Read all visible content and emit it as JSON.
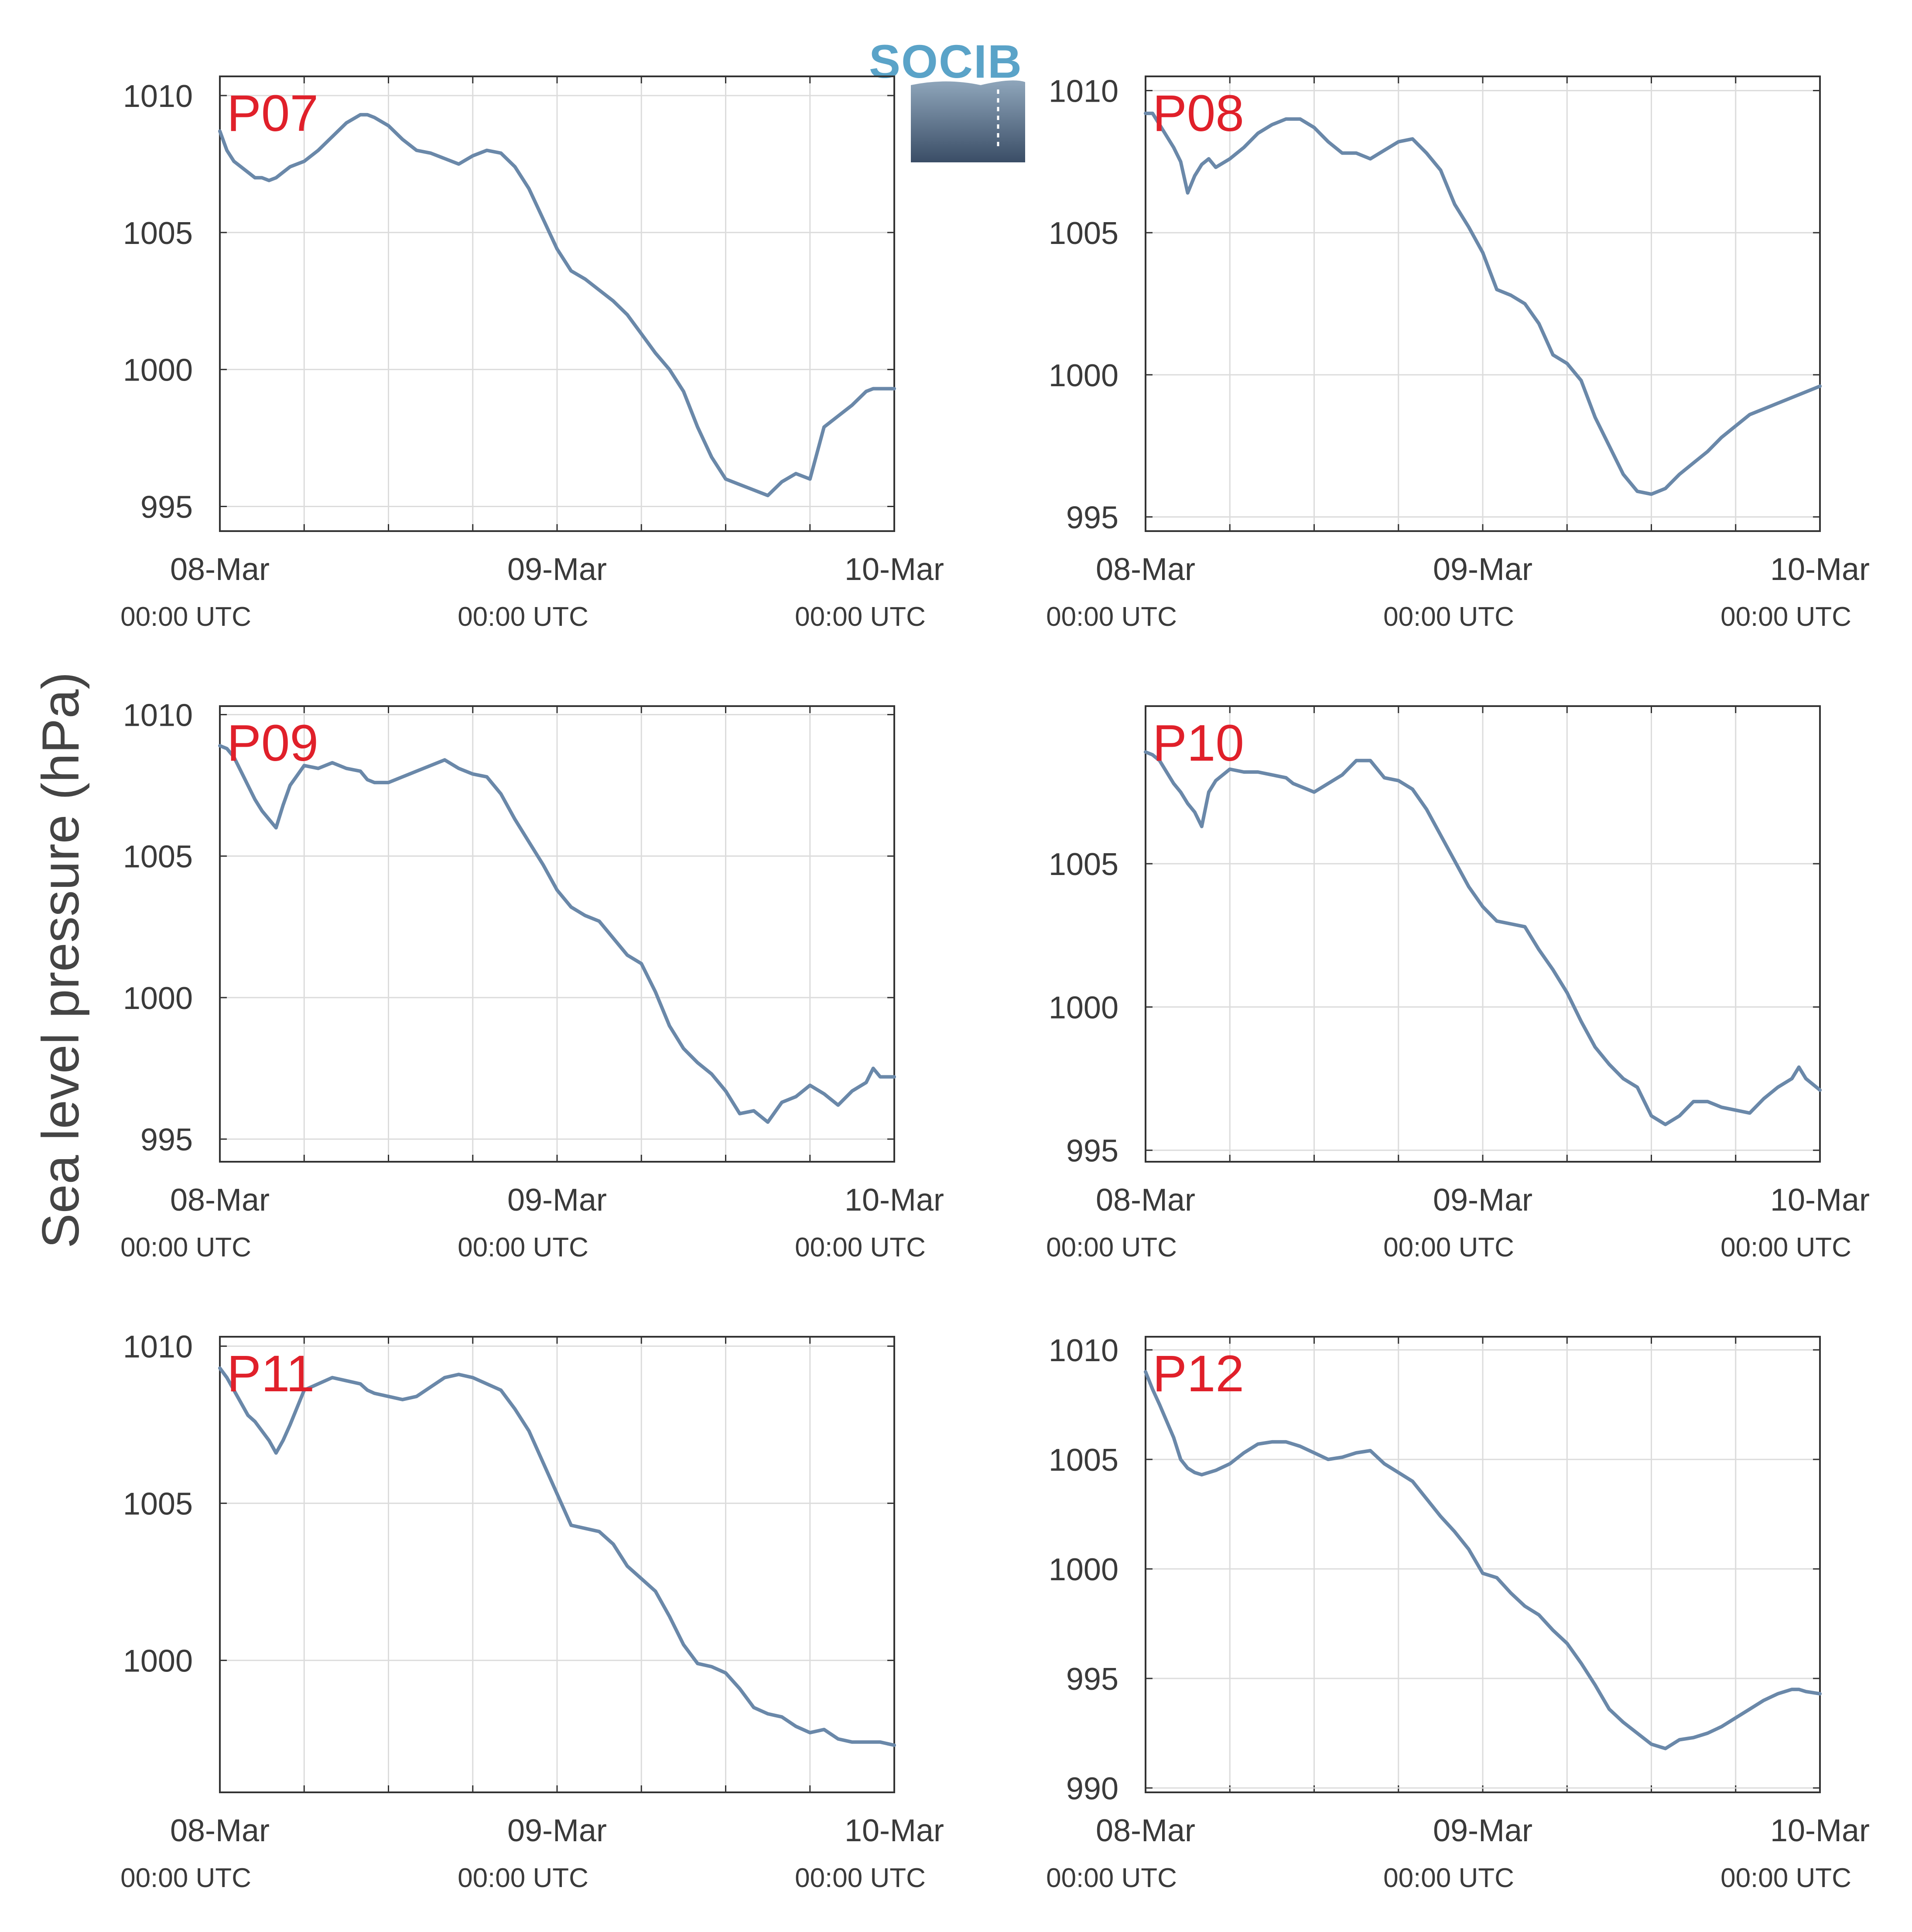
{
  "figure": {
    "ylabel": "Sea level pressure (hPa)",
    "logo_text": "SOCIB",
    "x_tick_labels": [
      "08-Mar",
      "09-Mar",
      "10-Mar"
    ],
    "x_tick_sublabels": [
      "00:00 UTC",
      "00:00 UTC",
      "00:00 UTC"
    ],
    "colors": {
      "line": "#6a88a9",
      "panel_label": "#e0202a",
      "grid": "#dcdcdc",
      "frame": "#333333",
      "logo_top": "#5aa3c8",
      "logo_bottom": "#3a4d66"
    }
  },
  "chart_data": [
    {
      "type": "line",
      "title": "P07",
      "ylim": [
        994.1,
        1010.7
      ],
      "yticks": [
        995,
        1000,
        1005,
        1010
      ],
      "x_unit": "hours since 08-Mar 00:00 UTC",
      "xlim": [
        0,
        48
      ],
      "grid": true,
      "series": [
        {
          "x": [
            0,
            0.5,
            1,
            2,
            2.5,
            3,
            3.5,
            4,
            4.5,
            5,
            6,
            7,
            8,
            9,
            10,
            10.5,
            11,
            12,
            13,
            14,
            15,
            16,
            17,
            18,
            19,
            20,
            21,
            22,
            23,
            24,
            25,
            26,
            27,
            28,
            29,
            30,
            31,
            32,
            33,
            34,
            35,
            36,
            37,
            38,
            39,
            40,
            41,
            42,
            43,
            44,
            45,
            46,
            46.5,
            47,
            48
          ],
          "y": [
            1008.7,
            1008.0,
            1007.6,
            1007.2,
            1007.0,
            1007.0,
            1006.9,
            1007.0,
            1007.2,
            1007.4,
            1007.6,
            1008.0,
            1008.5,
            1009.0,
            1009.3,
            1009.3,
            1009.2,
            1008.9,
            1008.4,
            1008.0,
            1007.9,
            1007.7,
            1007.5,
            1007.8,
            1008.0,
            1007.9,
            1007.4,
            1006.6,
            1005.5,
            1004.4,
            1003.6,
            1003.3,
            1002.9,
            1002.5,
            1002.0,
            1001.3,
            1000.6,
            1000.0,
            999.2,
            997.9,
            996.8,
            996.0,
            995.8,
            995.6,
            995.4,
            995.9,
            996.2,
            996.0,
            997.9,
            998.3,
            998.7,
            999.2,
            999.3,
            999.3,
            999.3
          ]
        }
      ]
    },
    {
      "type": "line",
      "title": "P08",
      "ylim": [
        994.5,
        1010.5
      ],
      "yticks": [
        995,
        1000,
        1005,
        1010
      ],
      "x_unit": "hours since 08-Mar 00:00 UTC",
      "xlim": [
        0,
        48
      ],
      "grid": true,
      "series": [
        {
          "x": [
            0,
            0.5,
            1,
            2,
            2.5,
            3,
            3.5,
            4,
            4.5,
            5,
            6,
            7,
            8,
            9,
            10,
            10.5,
            11,
            12,
            13,
            14,
            15,
            16,
            17,
            18,
            19,
            20,
            21,
            22,
            23,
            24,
            25,
            26,
            27,
            28,
            29,
            30,
            31,
            32,
            33,
            34,
            35,
            36,
            37,
            38,
            39,
            40,
            41,
            42,
            43,
            44,
            45,
            46,
            46.5,
            47,
            48
          ],
          "y": [
            1009.2,
            1009.2,
            1008.8,
            1008.0,
            1007.5,
            1006.4,
            1007.0,
            1007.4,
            1007.6,
            1007.3,
            1007.6,
            1008.0,
            1008.5,
            1008.8,
            1009.0,
            1009.0,
            1009.0,
            1008.7,
            1008.2,
            1007.8,
            1007.8,
            1007.6,
            1007.9,
            1008.2,
            1008.3,
            1007.8,
            1007.2,
            1006.0,
            1005.2,
            1004.3,
            1003.0,
            1002.8,
            1002.5,
            1001.8,
            1000.7,
            1000.4,
            999.8,
            998.5,
            997.5,
            996.5,
            995.9,
            995.8,
            996.0,
            996.5,
            996.9,
            997.3,
            997.8,
            998.2,
            998.6,
            998.8,
            999.0,
            999.2,
            999.3,
            999.4,
            999.6
          ]
        }
      ]
    },
    {
      "type": "line",
      "title": "P09",
      "ylim": [
        994.2,
        1010.3
      ],
      "yticks": [
        995,
        1000,
        1005,
        1010
      ],
      "x_unit": "hours since 08-Mar 00:00 UTC",
      "xlim": [
        0,
        48
      ],
      "grid": true,
      "series": [
        {
          "x": [
            0,
            0.5,
            1,
            2,
            2.5,
            3,
            3.5,
            4,
            4.5,
            5,
            6,
            7,
            8,
            9,
            10,
            10.5,
            11,
            12,
            13,
            14,
            15,
            16,
            17,
            18,
            19,
            20,
            21,
            22,
            23,
            24,
            25,
            26,
            27,
            28,
            29,
            30,
            31,
            32,
            33,
            34,
            35,
            36,
            37,
            38,
            39,
            40,
            41,
            42,
            43,
            44,
            45,
            46,
            46.5,
            47,
            48
          ],
          "y": [
            1008.9,
            1008.8,
            1008.5,
            1007.5,
            1007.0,
            1006.6,
            1006.3,
            1006.0,
            1006.8,
            1007.5,
            1008.2,
            1008.1,
            1008.3,
            1008.1,
            1008.0,
            1007.7,
            1007.6,
            1007.6,
            1007.8,
            1008.0,
            1008.2,
            1008.4,
            1008.1,
            1007.9,
            1007.8,
            1007.2,
            1006.3,
            1005.5,
            1004.7,
            1003.8,
            1003.2,
            1002.9,
            1002.7,
            1002.1,
            1001.5,
            1001.2,
            1000.2,
            999.0,
            998.2,
            997.7,
            997.3,
            996.7,
            995.9,
            996.0,
            995.6,
            996.3,
            996.5,
            996.9,
            996.6,
            996.2,
            996.7,
            997.0,
            997.5,
            997.2,
            997.2
          ]
        }
      ]
    },
    {
      "type": "line",
      "title": "P10",
      "ylim": [
        994.6,
        1010.5
      ],
      "yticks": [
        995,
        1000,
        1005
      ],
      "x_unit": "hours since 08-Mar 00:00 UTC",
      "xlim": [
        0,
        48
      ],
      "grid": true,
      "series": [
        {
          "x": [
            0,
            0.5,
            1,
            2,
            2.5,
            3,
            3.5,
            4,
            4.5,
            5,
            6,
            7,
            8,
            9,
            10,
            10.5,
            11,
            12,
            13,
            14,
            15,
            16,
            17,
            18,
            19,
            20,
            21,
            22,
            23,
            24,
            25,
            26,
            27,
            28,
            29,
            30,
            31,
            32,
            33,
            34,
            35,
            36,
            37,
            38,
            39,
            40,
            41,
            42,
            43,
            44,
            45,
            46,
            46.5,
            47,
            48
          ],
          "y": [
            1008.9,
            1008.8,
            1008.6,
            1007.8,
            1007.5,
            1007.1,
            1006.8,
            1006.3,
            1007.5,
            1007.9,
            1008.3,
            1008.2,
            1008.2,
            1008.1,
            1008.0,
            1007.8,
            1007.7,
            1007.5,
            1007.8,
            1008.1,
            1008.6,
            1008.6,
            1008.0,
            1007.9,
            1007.6,
            1006.9,
            1006.0,
            1005.1,
            1004.2,
            1003.5,
            1003.0,
            1002.9,
            1002.8,
            1002.0,
            1001.3,
            1000.5,
            999.5,
            998.6,
            998.0,
            997.5,
            997.2,
            996.2,
            995.9,
            996.2,
            996.7,
            996.7,
            996.5,
            996.4,
            996.3,
            996.8,
            997.2,
            997.5,
            997.9,
            997.5,
            997.1
          ]
        }
      ]
    },
    {
      "type": "line",
      "title": "P11",
      "ylim": [
        995.8,
        1010.3
      ],
      "yticks": [
        1000,
        1005,
        1010
      ],
      "x_unit": "hours since 08-Mar 00:00 UTC",
      "xlim": [
        0,
        48
      ],
      "grid": true,
      "series": [
        {
          "x": [
            0,
            0.5,
            1,
            2,
            2.5,
            3,
            3.5,
            4,
            4.5,
            5,
            6,
            7,
            8,
            9,
            10,
            10.5,
            11,
            12,
            13,
            14,
            15,
            16,
            17,
            18,
            19,
            20,
            21,
            22,
            23,
            24,
            25,
            26,
            27,
            28,
            29,
            30,
            31,
            32,
            33,
            34,
            35,
            36,
            37,
            38,
            39,
            40,
            41,
            42,
            43,
            44,
            45,
            46,
            46.5,
            47,
            48
          ],
          "y": [
            1009.3,
            1009.0,
            1008.6,
            1007.8,
            1007.6,
            1007.3,
            1007.0,
            1006.6,
            1007.0,
            1007.5,
            1008.6,
            1008.8,
            1009.0,
            1008.9,
            1008.8,
            1008.6,
            1008.5,
            1008.4,
            1008.3,
            1008.4,
            1008.7,
            1009.0,
            1009.1,
            1009.0,
            1008.8,
            1008.6,
            1008.0,
            1007.3,
            1006.3,
            1005.3,
            1004.3,
            1004.2,
            1004.1,
            1003.7,
            1003.0,
            1002.6,
            1002.2,
            1001.4,
            1000.5,
            999.9,
            999.8,
            999.6,
            999.1,
            998.5,
            998.3,
            998.2,
            997.9,
            997.7,
            997.8,
            997.5,
            997.4,
            997.4,
            997.4,
            997.4,
            997.3
          ]
        }
      ]
    },
    {
      "type": "line",
      "title": "P12",
      "ylim": [
        989.8,
        1010.6
      ],
      "yticks": [
        990,
        995,
        1000,
        1005,
        1010
      ],
      "x_unit": "hours since 08-Mar 00:00 UTC",
      "xlim": [
        0,
        48
      ],
      "grid": true,
      "series": [
        {
          "x": [
            0,
            0.5,
            1,
            2,
            2.5,
            3,
            3.5,
            4,
            4.5,
            5,
            6,
            7,
            8,
            9,
            10,
            10.5,
            11,
            12,
            13,
            14,
            15,
            16,
            17,
            18,
            19,
            20,
            21,
            22,
            23,
            24,
            25,
            26,
            27,
            28,
            29,
            30,
            31,
            32,
            33,
            34,
            35,
            36,
            37,
            38,
            39,
            40,
            41,
            42,
            43,
            44,
            45,
            46,
            46.5,
            47,
            48
          ],
          "y": [
            1009.0,
            1008.2,
            1007.5,
            1006.0,
            1005.0,
            1004.6,
            1004.4,
            1004.3,
            1004.4,
            1004.5,
            1004.8,
            1005.3,
            1005.7,
            1005.8,
            1005.8,
            1005.7,
            1005.6,
            1005.3,
            1005.0,
            1005.1,
            1005.3,
            1005.4,
            1004.8,
            1004.4,
            1004.0,
            1003.2,
            1002.4,
            1001.7,
            1000.9,
            999.8,
            999.6,
            998.9,
            998.3,
            997.9,
            997.2,
            996.6,
            995.7,
            994.7,
            993.6,
            993.0,
            992.5,
            992.0,
            991.8,
            992.2,
            992.3,
            992.5,
            992.8,
            993.2,
            993.6,
            994.0,
            994.3,
            994.5,
            994.5,
            994.4,
            994.3
          ]
        }
      ]
    }
  ]
}
